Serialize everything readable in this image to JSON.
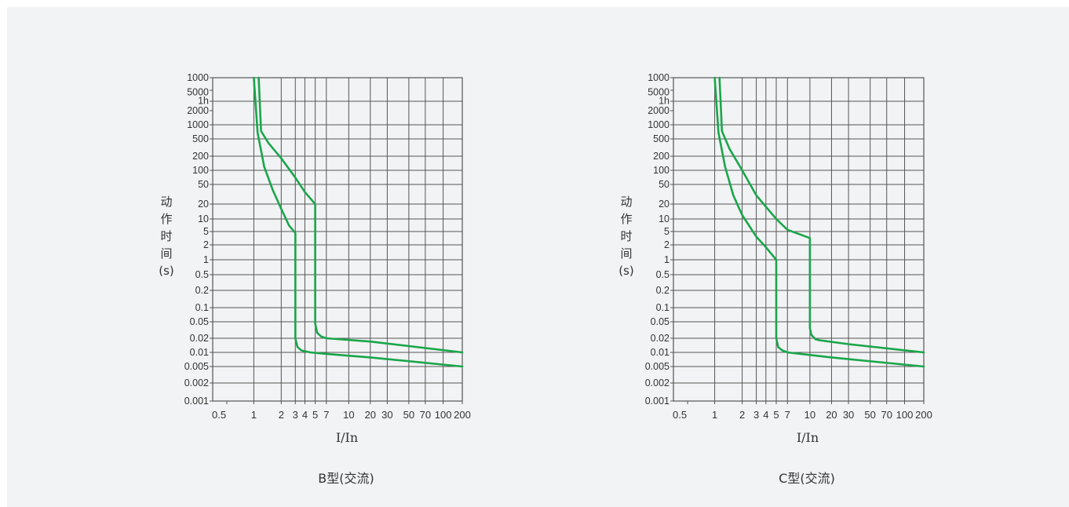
{
  "colors": {
    "curve": "#1aa64a",
    "grid": "#555555",
    "background": "#f2f3f5",
    "text": "#333333"
  },
  "chart_data": [
    {
      "type": "line",
      "title": "B型(交流)",
      "xlabel": "I/In",
      "ylabel_chars": [
        "动",
        "作",
        "时",
        "间",
        "(s)"
      ],
      "x_scale": "log",
      "y_scale": "log",
      "x_ticks": [
        "0.5",
        "1",
        "2",
        "3",
        "4",
        "5",
        "7",
        "10",
        "20",
        "30",
        "50",
        "70",
        "100",
        "200"
      ],
      "y_ticks": [
        "1000",
        "5000",
        "1h",
        "2000",
        "1000",
        "500",
        "200",
        "100",
        "50",
        "20",
        "10",
        "5",
        "2",
        "1",
        "0.5",
        "0.2",
        "0.1",
        "0.05",
        "0.02",
        "0.01",
        "0.005",
        "0.002",
        "0.001"
      ],
      "series": [
        {
          "points": [
            [
              1.0,
              14400
            ],
            [
              1.1,
              1200
            ],
            [
              1.3,
              120
            ],
            [
              1.6,
              40
            ],
            [
              2.0,
              16
            ],
            [
              2.5,
              7
            ],
            [
              3.0,
              4.5
            ],
            [
              3.0,
              0.02
            ],
            [
              3.2,
              0.013
            ],
            [
              3.6,
              0.011
            ],
            [
              4.5,
              0.01
            ],
            [
              7,
              0.0093
            ],
            [
              20,
              0.0078
            ],
            [
              200,
              0.005
            ]
          ]
        },
        {
          "points": [
            [
              1.13,
              14400
            ],
            [
              1.2,
              1500
            ],
            [
              1.45,
              400
            ],
            [
              2.0,
              180
            ],
            [
              3.0,
              70
            ],
            [
              4.0,
              35
            ],
            [
              5.0,
              20
            ],
            [
              5.0,
              0.045
            ],
            [
              5.3,
              0.027
            ],
            [
              6.0,
              0.022
            ],
            [
              7.0,
              0.02
            ],
            [
              20,
              0.017
            ],
            [
              200,
              0.01
            ]
          ]
        }
      ]
    },
    {
      "type": "line",
      "title": "C型(交流)",
      "xlabel": "I/In",
      "ylabel_chars": [
        "动",
        "作",
        "时",
        "间",
        "(s)"
      ],
      "x_scale": "log",
      "y_scale": "log",
      "x_ticks": [
        "0.5",
        "1",
        "2",
        "3",
        "4",
        "5",
        "7",
        "10",
        "20",
        "30",
        "50",
        "70",
        "100",
        "200"
      ],
      "y_ticks": [
        "1000",
        "5000",
        "1h",
        "2000",
        "1000",
        "500",
        "200",
        "100",
        "50",
        "20",
        "10",
        "5",
        "2",
        "1",
        "0.5",
        "0.2",
        "0.1",
        "0.05",
        "0.02",
        "0.01",
        "0.005",
        "0.002",
        "0.001"
      ],
      "series": [
        {
          "points": [
            [
              1.0,
              14400
            ],
            [
              1.1,
              1200
            ],
            [
              1.3,
              120
            ],
            [
              1.6,
              30
            ],
            [
              2.0,
              12
            ],
            [
              3.0,
              3.5
            ],
            [
              4.0,
              1.8
            ],
            [
              5.0,
              1.0
            ],
            [
              5.0,
              0.02
            ],
            [
              5.3,
              0.013
            ],
            [
              6.0,
              0.011
            ],
            [
              7.0,
              0.01
            ],
            [
              20,
              0.0078
            ],
            [
              200,
              0.005
            ]
          ]
        },
        {
          "points": [
            [
              1.13,
              14400
            ],
            [
              1.2,
              1500
            ],
            [
              1.45,
              300
            ],
            [
              2.0,
              100
            ],
            [
              3.0,
              30
            ],
            [
              5.0,
              10
            ],
            [
              7.0,
              5.5
            ],
            [
              10,
              3.2
            ],
            [
              10,
              0.035
            ],
            [
              10.5,
              0.024
            ],
            [
              12,
              0.019
            ],
            [
              14,
              0.018
            ],
            [
              30,
              0.015
            ],
            [
              200,
              0.01
            ]
          ]
        }
      ]
    }
  ]
}
